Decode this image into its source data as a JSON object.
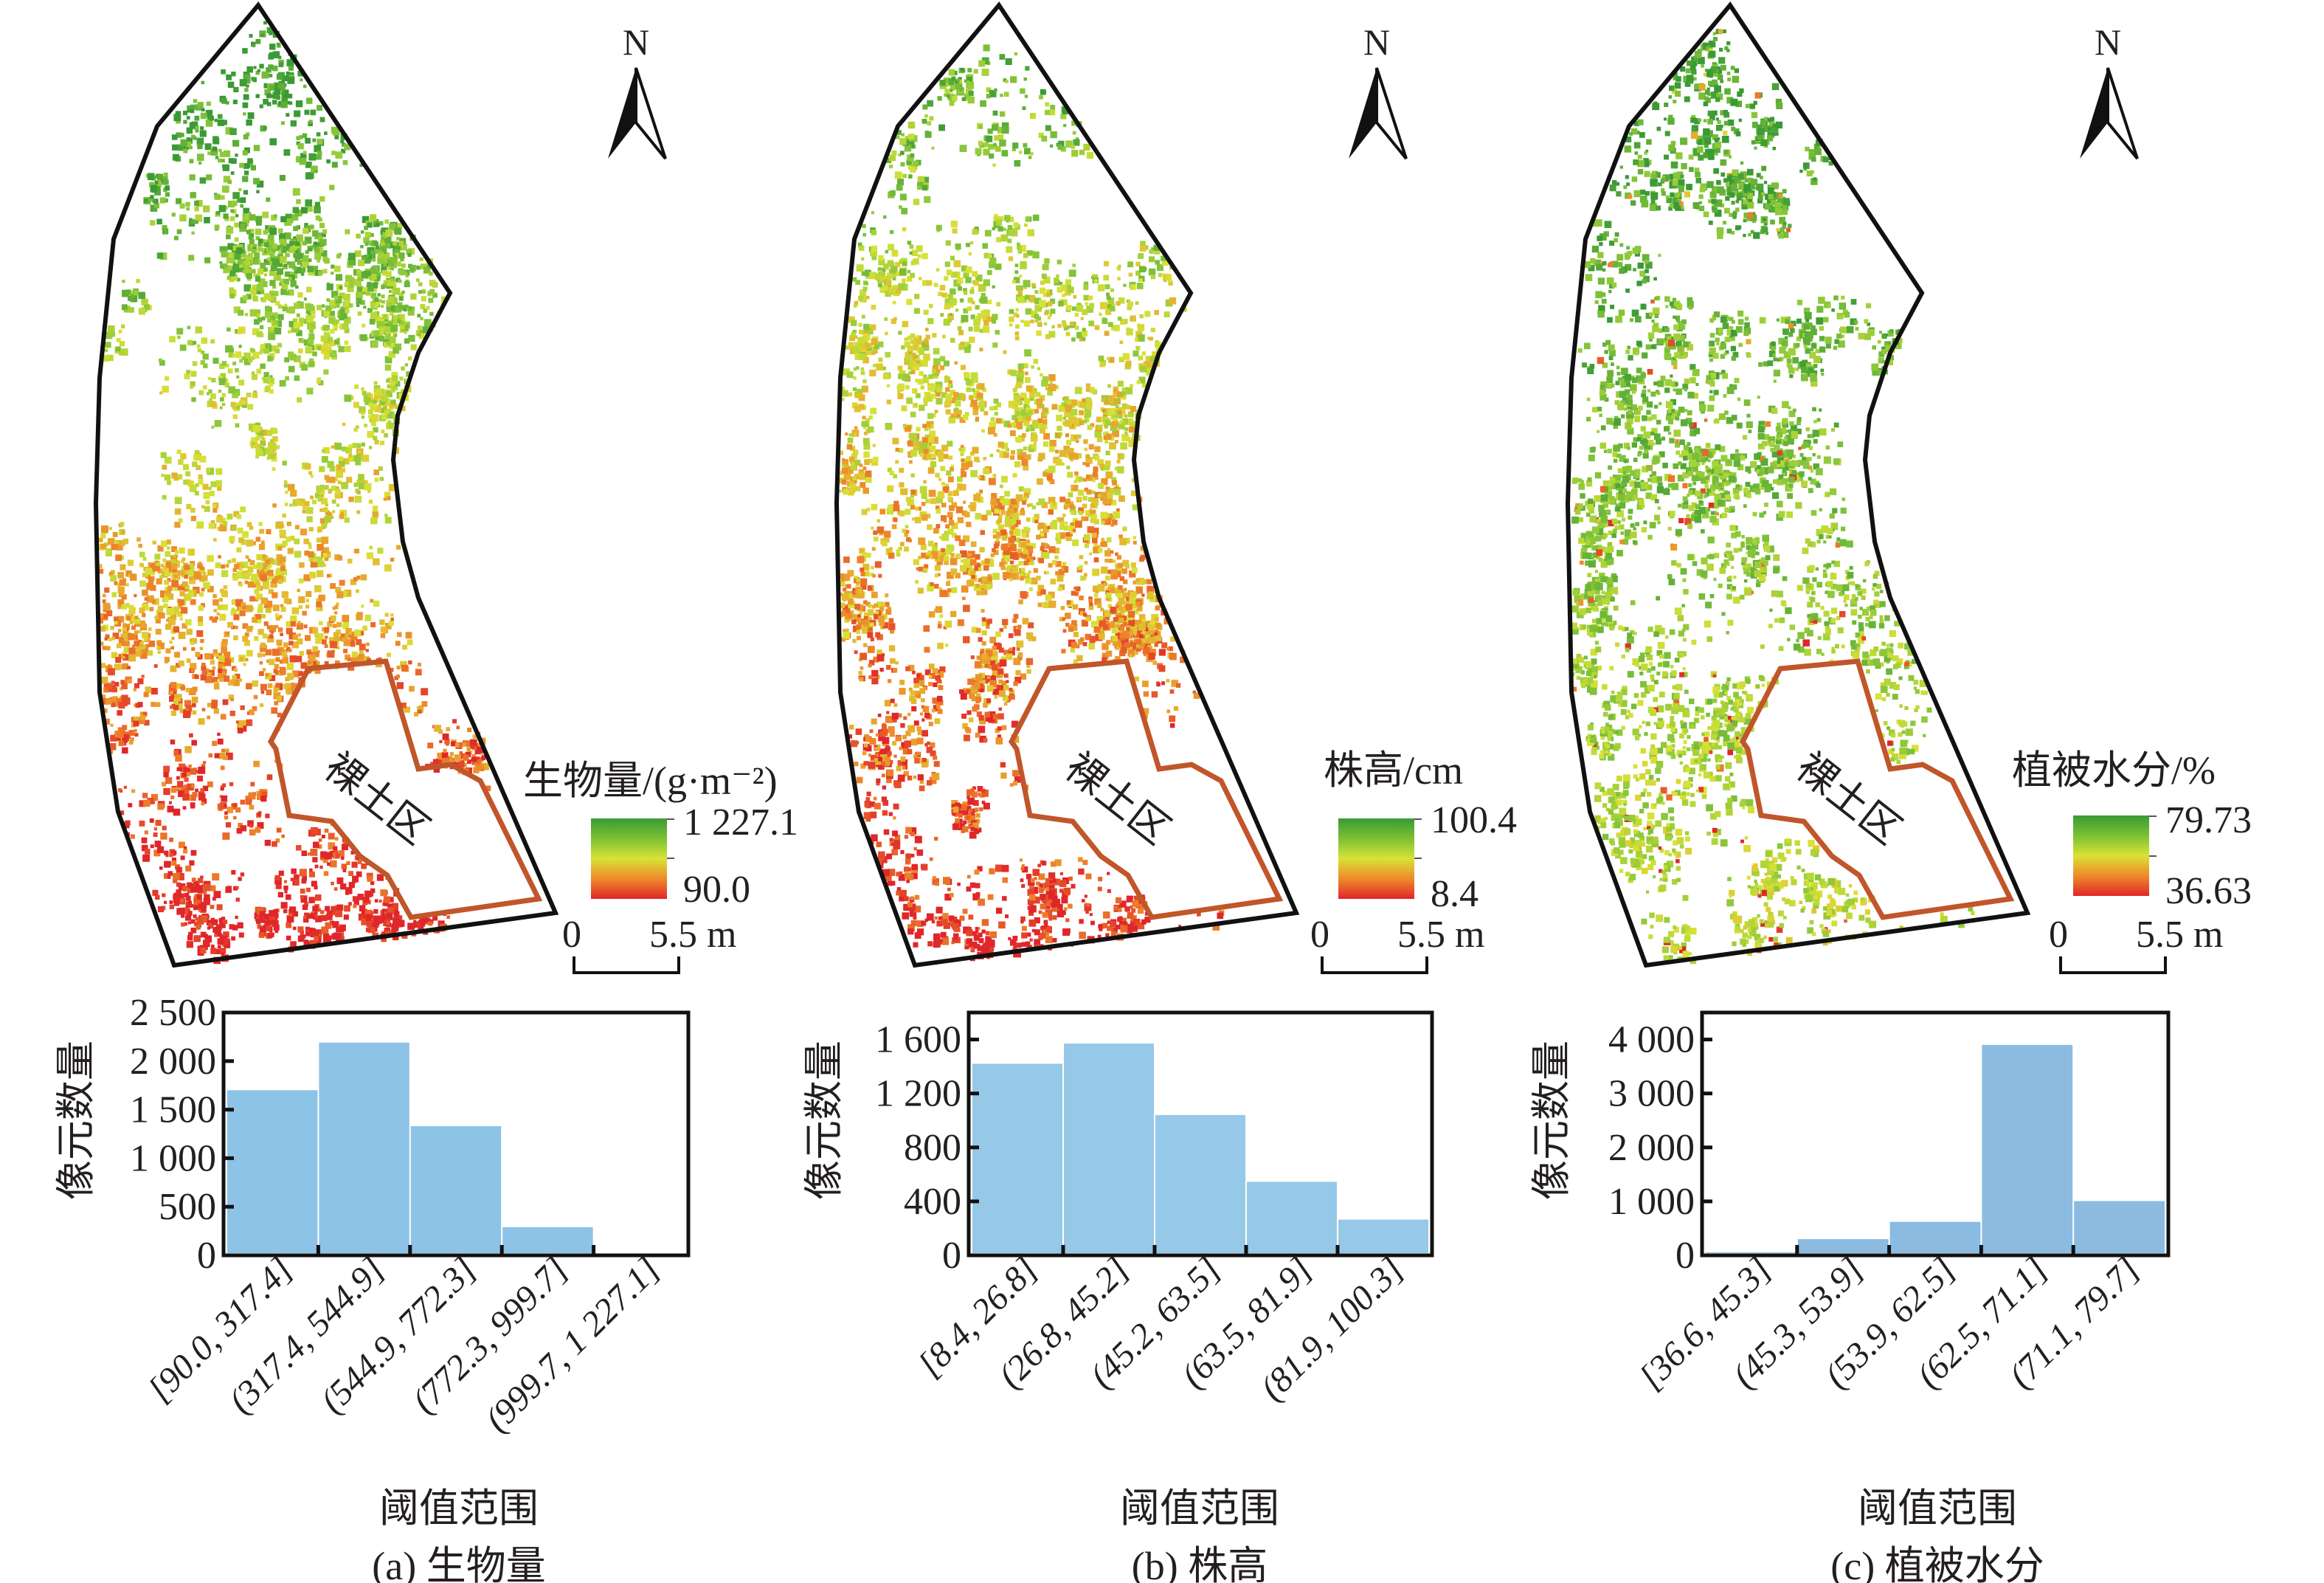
{
  "panels": [
    {
      "id": "a",
      "north": "N",
      "bare_soil_label": "裸土区",
      "legend": {
        "title": "生物量/(g·m⁻²)",
        "max": "1 227.1",
        "min": "90.0"
      },
      "scale": {
        "zero": "0",
        "length": "5.5 m"
      },
      "caption": "(a) 生物量"
    },
    {
      "id": "b",
      "north": "N",
      "bare_soil_label": "裸土区",
      "legend": {
        "title": "株高/cm",
        "max": "100.4",
        "min": "8.4"
      },
      "scale": {
        "zero": "0",
        "length": "5.5 m"
      },
      "caption": "(b) 株高"
    },
    {
      "id": "c",
      "north": "N",
      "bare_soil_label": "裸土区",
      "legend": {
        "title": "植被水分/%",
        "max": "79.73",
        "min": "36.63"
      },
      "scale": {
        "zero": "0",
        "length": "5.5 m"
      },
      "caption": "(c) 植被水分"
    }
  ],
  "colors": {
    "ramp": [
      "#e0262a",
      "#ee8a2a",
      "#d9e236",
      "#8cc83a",
      "#3a9a35"
    ],
    "bare_soil_outline": "#c0562a",
    "bar_a": "#8cc3e6",
    "bar_b": "#96c8e7",
    "bar_c": "#8bbbe1"
  },
  "chart_data": [
    {
      "type": "bar",
      "categories": [
        "[90.0, 317.4]",
        "(317.4, 544.9]",
        "(544.9, 772.3]",
        "(772.3, 999.7]",
        "(999.7, 1 227.1]"
      ],
      "values": [
        1700,
        2190,
        1330,
        290,
        10
      ],
      "xlabel": "阈值范围",
      "ylabel": "像元数量",
      "ylim": [
        0,
        2500
      ],
      "yticks": [
        0,
        500,
        1000,
        1500,
        2000,
        2500
      ],
      "ytick_labels": [
        "0",
        "500",
        "1 000",
        "1 500",
        "2 000",
        "2 500"
      ],
      "grid": false
    },
    {
      "type": "bar",
      "categories": [
        "[8.4, 26.8]",
        "(26.8, 45.2]",
        "(45.2, 63.5]",
        "(63.5, 81.9]",
        "(81.9, 100.3]"
      ],
      "values": [
        1420,
        1570,
        1040,
        545,
        265
      ],
      "xlabel": "阈值范围",
      "ylabel": "像元数量",
      "ylim": [
        0,
        1800
      ],
      "yticks": [
        0,
        400,
        800,
        1200,
        1600
      ],
      "ytick_labels": [
        "0",
        "400",
        "800",
        "1 200",
        "1 600"
      ],
      "grid": false
    },
    {
      "type": "bar",
      "categories": [
        "[36.6, 45.3]",
        "(45.3, 53.9]",
        "(53.9, 62.5]",
        "(62.5, 71.1]",
        "(71.1, 79.7]"
      ],
      "values": [
        55,
        300,
        620,
        3900,
        1005
      ],
      "xlabel": "阈值范围",
      "ylabel": "像元数量",
      "ylim": [
        0,
        4500
      ],
      "yticks": [
        0,
        1000,
        2000,
        3000,
        4000
      ],
      "ytick_labels": [
        "0",
        "1 000",
        "2 000",
        "3 000",
        "4 000"
      ],
      "grid": false
    }
  ]
}
